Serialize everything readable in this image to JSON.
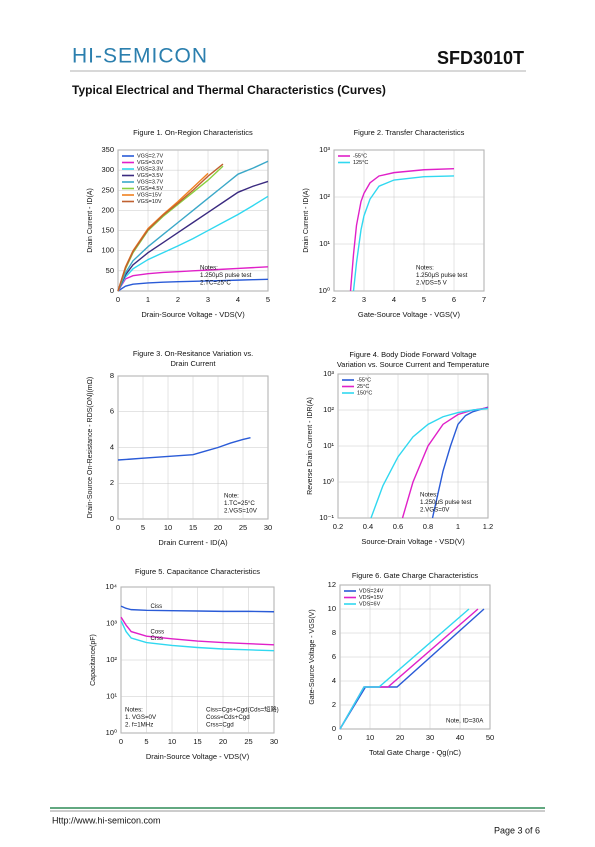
{
  "header": {
    "brand": "HI-SEMICON",
    "part": "SFD3010T"
  },
  "section_title": "Typical Electrical and Thermal Characteristics (Curves)",
  "chart_data": [
    {
      "type": "line",
      "title": [
        "Figure 1. On-Region Characteristics"
      ],
      "x_label": "Drain-Source Voltage - VDS(V)",
      "y_label": "Drain Current - ID(A)",
      "xlim": [
        0,
        5
      ],
      "ylim": [
        0,
        350
      ],
      "xticks": [
        0,
        1,
        2,
        3,
        4,
        5
      ],
      "yticks": [
        0,
        50,
        100,
        150,
        200,
        250,
        300,
        350
      ],
      "grid": true,
      "legend": "upper left",
      "x": [
        0,
        0.25,
        0.5,
        1,
        1.5,
        2,
        2.5,
        3,
        3.5,
        4,
        4.5,
        5
      ],
      "series": [
        {
          "name": "VGS=2.7V",
          "color": "#2a5bd7",
          "values": [
            0,
            12,
            17,
            20,
            22,
            23,
            24,
            25,
            26,
            27,
            28,
            29
          ]
        },
        {
          "name": "VGS=3.0V",
          "color": "#e020c8",
          "values": [
            0,
            30,
            38,
            43,
            46,
            48,
            50,
            52,
            54,
            56,
            58,
            60
          ]
        },
        {
          "name": "VGS=3.3V",
          "color": "#30d8f0",
          "values": [
            0,
            35,
            55,
            78,
            95,
            112,
            130,
            150,
            170,
            190,
            212,
            235
          ]
        },
        {
          "name": "VGS=3.5V",
          "color": "#3a2a80",
          "values": [
            0,
            40,
            65,
            95,
            120,
            145,
            170,
            195,
            220,
            245,
            260,
            272
          ]
        },
        {
          "name": "VGS=3.7V",
          "color": "#3aa8c8",
          "values": [
            0,
            45,
            75,
            110,
            140,
            170,
            200,
            230,
            260,
            290,
            305,
            322
          ]
        },
        {
          "name": "VGS=4.5V",
          "color": "#8ad040",
          "values": [
            0,
            55,
            95,
            150,
            185,
            215,
            245,
            275,
            310,
            null,
            null,
            null
          ]
        },
        {
          "name": "VGS=15V",
          "color": "#f08020",
          "values": [
            0,
            60,
            100,
            155,
            190,
            222,
            257,
            292,
            null,
            null,
            null,
            null
          ]
        },
        {
          "name": "VGS=10V",
          "color": "#c06030",
          "values": [
            0,
            58,
            98,
            152,
            188,
            218,
            250,
            285,
            315,
            null,
            null,
            null
          ]
        }
      ],
      "annotations": [
        {
          "corner": "lower right",
          "lines": [
            "Notes:",
            "1.250μS pulse test",
            "2.TC=25°C"
          ]
        }
      ]
    },
    {
      "type": "line",
      "title": [
        "Figure 2. Transfer Characteristics"
      ],
      "x_label": "Gate-Source Voltage - VGS(V)",
      "y_label": "Drain Current - ID(A)",
      "xlim": [
        2,
        7
      ],
      "ylim": [
        1,
        1000
      ],
      "ylog": true,
      "xticks": [
        2,
        3,
        4,
        5,
        6,
        7
      ],
      "yticks": [
        {
          "value": 1,
          "label": "10⁰"
        },
        {
          "value": 10,
          "label": "10¹"
        },
        {
          "value": 100,
          "label": "10²"
        },
        {
          "value": 1000,
          "label": "10³"
        }
      ],
      "grid": true,
      "legend": "upper left",
      "x": [
        2.55,
        2.65,
        2.75,
        2.9,
        3.0,
        3.2,
        3.5,
        4,
        5,
        6
      ],
      "series": [
        {
          "name": "-55°C",
          "color": "#e020c8",
          "values": [
            1,
            6,
            25,
            80,
            120,
            200,
            280,
            330,
            380,
            400
          ]
        },
        {
          "name": "125°C",
          "color": "#30d8f0",
          "values": [
            null,
            1,
            4,
            20,
            40,
            90,
            170,
            230,
            270,
            280
          ]
        }
      ],
      "annotations": [
        {
          "corner": "lower right",
          "lines": [
            "Notes:",
            "1.250μS pulse test",
            "2.VDS=5 V"
          ]
        }
      ]
    },
    {
      "type": "line",
      "title": [
        "Figure 3. On-Resitance Variation vs.",
        "Drain Current"
      ],
      "x_label": "Drain Current - ID(A)",
      "y_label": "Drain-Source On-Resistance - RDS(ON)(mΩ)",
      "xlim": [
        0,
        30
      ],
      "ylim": [
        0,
        8
      ],
      "xticks": [
        0,
        5,
        10,
        15,
        20,
        25,
        30
      ],
      "yticks": [
        0,
        2,
        4,
        6,
        8
      ],
      "grid": true,
      "x": [
        0,
        2.5,
        5,
        10,
        15,
        17.5,
        20,
        22.5,
        25,
        26.5
      ],
      "series": [
        {
          "color": "#2a5bd7",
          "values": [
            3.3,
            3.35,
            3.4,
            3.5,
            3.6,
            3.8,
            4.0,
            4.25,
            4.45,
            4.55
          ]
        }
      ],
      "annotations": [
        {
          "corner": "lower right",
          "lines": [
            "Note:",
            "1.TC=25°C",
            "2.VGS=10V"
          ]
        }
      ]
    },
    {
      "type": "line",
      "title": [
        "Figure 4. Body Diode Forward Voltage",
        "Variation vs. Source Current and Temperature"
      ],
      "x_label": "Source-Drain Voltage - VSD(V)",
      "y_label": "Reverse Drain Current - IDR(A)",
      "xlim": [
        0.2,
        1.2
      ],
      "ylim": [
        0.1,
        1000
      ],
      "ylog": true,
      "xticks": [
        0.2,
        0.4,
        0.6,
        0.8,
        1,
        1.2
      ],
      "yticks": [
        {
          "value": 0.1,
          "label": "10⁻¹"
        },
        {
          "value": 1,
          "label": "10⁰"
        },
        {
          "value": 10,
          "label": "10¹"
        },
        {
          "value": 100,
          "label": "10²"
        },
        {
          "value": 1000,
          "label": "10³"
        }
      ],
      "grid": true,
      "legend": "upper left",
      "series": [
        {
          "name": "-55°C",
          "color": "#2a5bd7",
          "x": [
            0.83,
            0.9,
            0.95,
            1.0,
            1.05,
            1.1,
            1.2
          ],
          "values": [
            0.1,
            2,
            10,
            40,
            70,
            90,
            120
          ]
        },
        {
          "name": "25°C",
          "color": "#e020c8",
          "x": [
            0.63,
            0.7,
            0.8,
            0.9,
            1.0,
            1.1,
            1.2
          ],
          "values": [
            0.1,
            1,
            10,
            40,
            75,
            100,
            115
          ]
        },
        {
          "name": "150°C",
          "color": "#30d8f0",
          "x": [
            0.42,
            0.5,
            0.6,
            0.7,
            0.8,
            0.9,
            1.0,
            1.1,
            1.2
          ],
          "values": [
            0.1,
            0.8,
            5,
            18,
            40,
            65,
            85,
            100,
            110
          ]
        }
      ],
      "annotations": [
        {
          "corner": "lower right",
          "lines": [
            "Notes:",
            "1.250μS pulse test",
            "2.VGS=0V"
          ]
        }
      ]
    },
    {
      "type": "line",
      "title": [
        "Figure 5. Capacitance Characteristics"
      ],
      "x_label": "Drain-Source Voltage - VDS(V)",
      "y_label": "Capacitance(pF)",
      "xlim": [
        0,
        30
      ],
      "ylim": [
        1,
        10000
      ],
      "ylog": true,
      "xticks": [
        0,
        5,
        10,
        15,
        20,
        25,
        30
      ],
      "yticks": [
        {
          "value": 1,
          "label": "10⁰"
        },
        {
          "value": 10,
          "label": "10¹"
        },
        {
          "value": 100,
          "label": "10²"
        },
        {
          "value": 1000,
          "label": "10³"
        },
        {
          "value": 10000,
          "label": "10⁴"
        }
      ],
      "grid": true,
      "legend": "inline",
      "x": [
        0,
        1,
        2,
        5,
        10,
        15,
        20,
        25,
        30
      ],
      "series": [
        {
          "name": "Ciss",
          "color": "#2a5bd7",
          "values": [
            3000,
            2600,
            2400,
            2300,
            2250,
            2200,
            2150,
            2150,
            2100
          ]
        },
        {
          "name": "Coss",
          "color": "#e020c8",
          "values": [
            1500,
            900,
            600,
            450,
            380,
            330,
            300,
            280,
            260
          ]
        },
        {
          "name": "Crss",
          "color": "#30d8f0",
          "values": [
            1200,
            600,
            400,
            300,
            250,
            220,
            200,
            190,
            180
          ]
        }
      ],
      "annotations": [
        {
          "corner": "lower left",
          "lines": [
            "Notes:",
            "1. VGS=0V",
            "2. f=1MHz"
          ]
        },
        {
          "corner": "lower right",
          "lines": [
            "Ciss=Cgs+Cgd(Cds=短路)",
            "Coss=Cds+Cgd",
            "Crss=Cgd"
          ]
        }
      ]
    },
    {
      "type": "line",
      "title": [
        "Figure 6. Gate Charge Characteristics"
      ],
      "x_label": "Total Gate Charge - Qg(nC)",
      "y_label": "Gate-Source Voltage - VGS(V)",
      "xlim": [
        0,
        50
      ],
      "ylim": [
        0,
        12
      ],
      "xticks": [
        0,
        10,
        20,
        30,
        40,
        50
      ],
      "yticks": [
        0,
        2,
        4,
        6,
        8,
        10,
        12
      ],
      "grid": true,
      "legend": "upper left",
      "series": [
        {
          "name": "VDS=24V",
          "color": "#2a5bd7",
          "x": [
            0,
            8.5,
            19,
            48
          ],
          "values": [
            0,
            3.5,
            3.5,
            10
          ]
        },
        {
          "name": "VDS=15V",
          "color": "#e020c8",
          "x": [
            0,
            8,
            16,
            46
          ],
          "values": [
            0,
            3.5,
            3.5,
            10
          ]
        },
        {
          "name": "VDS=6V",
          "color": "#30d8f0",
          "x": [
            0,
            8,
            13,
            43
          ],
          "values": [
            0,
            3.5,
            3.5,
            10
          ]
        }
      ],
      "annotations": [
        {
          "corner": "lower right",
          "lines": [
            "Note, ID=30A"
          ]
        }
      ]
    }
  ],
  "footer": {
    "url": "Http://www.hi-semicon.com",
    "page": "Page 3 of 6"
  }
}
